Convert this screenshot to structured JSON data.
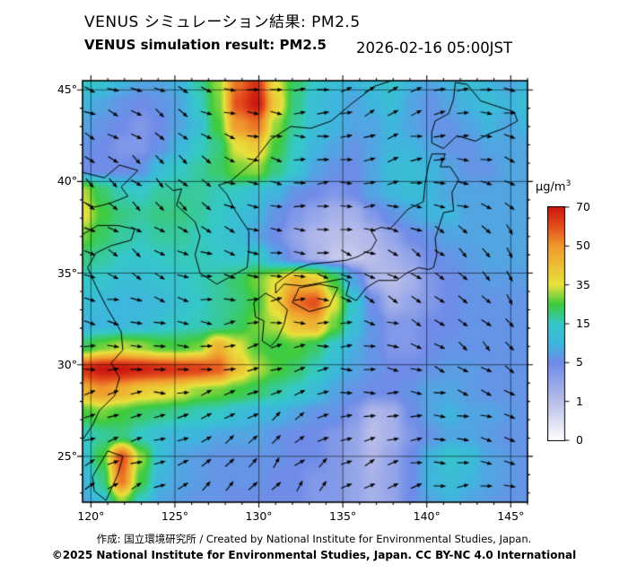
{
  "header": {
    "title_jp": "VENUS シミュレーション結果: PM2.5",
    "title_en": "VENUS simulation result: PM2.5",
    "timestamp": "2026-02-16 05:00JST"
  },
  "footer": {
    "credit_line1": "作成: 国立環境研究所 / Created by National Institute for Environmental Studies, Japan.",
    "credit_line2": "©2025 National Institute for Environmental Studies, Japan. CC BY-NC 4.0 International"
  },
  "colorbar": {
    "unit_text": "µg/m",
    "unit_sup": "3",
    "ticks": [
      70,
      50,
      35,
      15,
      5,
      1,
      0
    ]
  },
  "axes": {
    "lat_ticks": [
      {
        "value": 45,
        "label": "45°"
      },
      {
        "value": 40,
        "label": "40°"
      },
      {
        "value": 35,
        "label": "35°"
      },
      {
        "value": 30,
        "label": "30°"
      },
      {
        "value": 25,
        "label": "25°"
      }
    ],
    "lon_ticks": [
      {
        "value": 120,
        "label": "120°"
      },
      {
        "value": 125,
        "label": "125°"
      },
      {
        "value": 130,
        "label": "130°"
      },
      {
        "value": 135,
        "label": "135°"
      },
      {
        "value": 140,
        "label": "140°"
      },
      {
        "value": 145,
        "label": "145°"
      }
    ]
  },
  "chart_data": {
    "type": "heatmap",
    "title": "VENUS simulation result: PM2.5",
    "timestamp": "2026-02-16 05:00JST",
    "units": "µg/m3",
    "lon_range": [
      119.5,
      146.0
    ],
    "lat_range": [
      22.5,
      45.5
    ],
    "levels": [
      0,
      1,
      5,
      15,
      35,
      50,
      70
    ],
    "color_stops": [
      [
        0,
        "#ffffff"
      ],
      [
        1,
        "#b9bee9"
      ],
      [
        5,
        "#6f8ce8"
      ],
      [
        10,
        "#3fb6dd"
      ],
      [
        15,
        "#35c8c8"
      ],
      [
        25,
        "#3ecb3e"
      ],
      [
        35,
        "#e8e23c"
      ],
      [
        50,
        "#f09a2e"
      ],
      [
        60,
        "#e44e1e"
      ],
      [
        70,
        "#cc1810"
      ]
    ],
    "graticule_lon": [
      120,
      125,
      130,
      135,
      140,
      145
    ],
    "graticule_lat": [
      25,
      30,
      35,
      40,
      45
    ],
    "grid": {
      "cols": 24,
      "rows": 20,
      "values": [
        [
          15,
          14,
          10,
          8,
          8,
          10,
          18,
          30,
          55,
          65,
          35,
          22,
          15,
          12,
          10,
          12,
          14,
          10,
          8,
          10,
          12,
          10,
          8,
          10
        ],
        [
          10,
          8,
          6,
          5,
          6,
          8,
          15,
          28,
          60,
          70,
          40,
          20,
          12,
          10,
          8,
          10,
          12,
          8,
          6,
          8,
          10,
          12,
          10,
          12
        ],
        [
          8,
          6,
          5,
          4,
          5,
          8,
          12,
          25,
          50,
          55,
          30,
          18,
          12,
          10,
          8,
          8,
          10,
          8,
          6,
          6,
          8,
          10,
          8,
          10
        ],
        [
          6,
          5,
          4,
          4,
          6,
          10,
          15,
          20,
          35,
          40,
          25,
          15,
          10,
          8,
          6,
          8,
          10,
          10,
          8,
          6,
          6,
          8,
          8,
          8
        ],
        [
          5,
          5,
          5,
          6,
          12,
          15,
          18,
          22,
          28,
          30,
          20,
          14,
          8,
          6,
          5,
          8,
          12,
          12,
          10,
          8,
          6,
          6,
          8,
          8
        ],
        [
          32,
          22,
          16,
          15,
          18,
          18,
          18,
          16,
          15,
          12,
          10,
          6,
          5,
          4,
          5,
          8,
          10,
          12,
          10,
          8,
          8,
          8,
          8,
          8
        ],
        [
          36,
          25,
          20,
          18,
          20,
          20,
          18,
          15,
          12,
          10,
          6,
          4,
          3,
          2,
          2,
          4,
          6,
          8,
          10,
          10,
          8,
          8,
          8,
          8
        ],
        [
          28,
          22,
          18,
          16,
          18,
          18,
          16,
          14,
          12,
          8,
          5,
          3,
          1.5,
          1,
          1,
          1.5,
          3,
          5,
          6,
          8,
          8,
          8,
          8,
          8
        ],
        [
          20,
          18,
          15,
          14,
          15,
          16,
          16,
          15,
          14,
          15,
          8,
          4,
          2,
          0.8,
          0.8,
          1,
          2,
          3,
          5,
          6,
          7,
          8,
          8,
          8
        ],
        [
          15,
          14,
          12,
          12,
          13,
          14,
          16,
          18,
          22,
          28,
          35,
          45,
          40,
          25,
          8,
          2,
          1,
          2,
          4,
          5,
          6,
          7,
          7,
          7
        ],
        [
          12,
          11,
          10,
          10,
          11,
          13,
          15,
          18,
          20,
          25,
          38,
          55,
          60,
          35,
          14,
          5,
          2,
          3,
          4,
          5,
          6,
          6,
          6,
          6
        ],
        [
          10,
          10,
          10,
          11,
          13,
          15,
          16,
          18,
          22,
          28,
          32,
          42,
          45,
          28,
          12,
          6,
          4,
          4,
          5,
          5,
          6,
          6,
          6,
          6
        ],
        [
          22,
          28,
          32,
          30,
          26,
          25,
          28,
          45,
          35,
          26,
          24,
          26,
          22,
          14,
          9,
          6,
          4,
          4,
          5,
          6,
          6,
          6,
          6,
          6
        ],
        [
          65,
          70,
          70,
          68,
          66,
          64,
          62,
          58,
          42,
          32,
          26,
          22,
          16,
          11,
          8,
          6,
          5,
          5,
          6,
          7,
          7,
          6,
          6,
          6
        ],
        [
          45,
          50,
          45,
          40,
          38,
          35,
          30,
          28,
          25,
          22,
          18,
          15,
          12,
          8,
          6,
          5,
          5,
          6,
          8,
          8,
          7,
          6,
          6,
          6
        ],
        [
          25,
          28,
          25,
          22,
          20,
          18,
          16,
          15,
          12,
          10,
          10,
          8,
          6,
          6,
          4,
          1.5,
          2,
          5,
          8,
          10,
          8,
          8,
          7,
          6
        ],
        [
          15,
          18,
          20,
          15,
          12,
          10,
          10,
          8,
          8,
          8,
          6,
          5,
          5,
          4,
          3,
          1,
          2,
          4,
          6,
          8,
          8,
          7,
          6,
          6
        ],
        [
          12,
          25,
          60,
          30,
          12,
          8,
          7,
          6,
          6,
          6,
          6,
          5,
          5,
          4,
          3,
          1.5,
          3,
          5,
          10,
          14,
          12,
          8,
          7,
          6
        ],
        [
          10,
          20,
          55,
          25,
          10,
          8,
          7,
          6,
          6,
          6,
          5,
          5,
          4,
          4,
          3,
          2,
          3,
          5,
          10,
          12,
          10,
          8,
          7,
          6
        ],
        [
          8,
          12,
          30,
          15,
          8,
          7,
          6,
          6,
          5,
          5,
          5,
          5,
          4,
          4,
          3,
          2,
          3,
          5,
          8,
          10,
          8,
          7,
          6,
          6
        ]
      ]
    },
    "wind": {
      "cols": 13,
      "rows": 12,
      "angles_deg": [
        [
          -20,
          -25,
          -30,
          -20,
          -10,
          0,
          10,
          20,
          30,
          20,
          10,
          0,
          -10
        ],
        [
          -25,
          -30,
          -35,
          -25,
          -15,
          -5,
          5,
          15,
          25,
          15,
          5,
          -5,
          -15
        ],
        [
          -30,
          -35,
          -40,
          -30,
          -20,
          -10,
          0,
          10,
          20,
          10,
          0,
          -10,
          -20
        ],
        [
          -35,
          -40,
          -45,
          -35,
          -25,
          -15,
          -5,
          5,
          15,
          5,
          -5,
          -15,
          -25
        ],
        [
          -30,
          -35,
          -40,
          -30,
          -20,
          -10,
          0,
          -10,
          -20,
          -30,
          -40,
          -50,
          -60
        ],
        [
          -20,
          -25,
          -30,
          -20,
          -10,
          0,
          -10,
          -20,
          -30,
          -40,
          -50,
          -60,
          -70
        ],
        [
          -10,
          -15,
          -20,
          -10,
          0,
          10,
          0,
          -10,
          -20,
          -30,
          -40,
          -50,
          -60
        ],
        [
          0,
          -5,
          -10,
          0,
          10,
          20,
          10,
          0,
          -10,
          -20,
          -30,
          -40,
          -50
        ],
        [
          10,
          5,
          0,
          10,
          20,
          30,
          20,
          10,
          0,
          -10,
          -20,
          -30,
          -40
        ],
        [
          20,
          15,
          10,
          20,
          30,
          40,
          30,
          20,
          10,
          0,
          -10,
          -20,
          -30
        ],
        [
          30,
          25,
          20,
          30,
          40,
          50,
          40,
          30,
          20,
          10,
          0,
          -10,
          -20
        ],
        [
          40,
          35,
          30,
          40,
          50,
          60,
          50,
          40,
          30,
          20,
          10,
          0,
          -10
        ]
      ]
    },
    "coastlines": [
      [
        [
          119.5,
          40.5
        ],
        [
          120.8,
          40.2
        ],
        [
          121.7,
          40.9
        ],
        [
          122.8,
          40.6
        ],
        [
          121.8,
          39.7
        ],
        [
          122.2,
          39.2
        ],
        [
          121.1,
          38.8
        ],
        [
          120.2,
          38.6
        ],
        [
          119.5,
          38.9
        ]
      ],
      [
        [
          119.5,
          37.1
        ],
        [
          120.4,
          37.6
        ],
        [
          121.6,
          37.6
        ],
        [
          122.6,
          37.4
        ],
        [
          122.4,
          36.8
        ],
        [
          121.2,
          36.5
        ],
        [
          120.3,
          36.1
        ],
        [
          119.8,
          35.3
        ],
        [
          120.3,
          34.3
        ],
        [
          120.9,
          33.2
        ],
        [
          121.8,
          31.8
        ],
        [
          121.9,
          30.8
        ],
        [
          121.2,
          30.1
        ],
        [
          121.7,
          29.3
        ],
        [
          121.4,
          28.3
        ],
        [
          120.5,
          27.5
        ],
        [
          120.1,
          26.7
        ],
        [
          119.5,
          25.9
        ]
      ],
      [
        [
          124.4,
          39.9
        ],
        [
          124.9,
          39.5
        ],
        [
          125.4,
          39.6
        ],
        [
          125.1,
          38.7
        ],
        [
          126.2,
          37.8
        ],
        [
          126.5,
          37.0
        ],
        [
          126.2,
          36.0
        ],
        [
          126.5,
          35.0
        ],
        [
          127.5,
          34.4
        ],
        [
          128.5,
          34.9
        ],
        [
          129.3,
          35.3
        ],
        [
          129.4,
          36.2
        ],
        [
          129.4,
          37.3
        ],
        [
          128.6,
          38.4
        ],
        [
          128.1,
          39.3
        ],
        [
          127.6,
          39.8
        ],
        [
          128.3,
          40.0
        ],
        [
          129.7,
          41.1
        ],
        [
          130.7,
          42.3
        ]
      ],
      [
        [
          130.7,
          42.3
        ],
        [
          131.9,
          43.0
        ],
        [
          133.1,
          42.9
        ],
        [
          134.3,
          43.3
        ],
        [
          135.6,
          44.3
        ],
        [
          136.9,
          45.2
        ],
        [
          137.9,
          45.5
        ]
      ],
      [
        [
          129.7,
          33.4
        ],
        [
          130.4,
          33.9
        ],
        [
          131.0,
          33.6
        ],
        [
          131.7,
          33.0
        ],
        [
          131.5,
          32.2
        ],
        [
          131.1,
          31.4
        ],
        [
          130.7,
          31.0
        ],
        [
          130.2,
          31.3
        ],
        [
          130.3,
          32.4
        ],
        [
          129.8,
          32.6
        ],
        [
          129.7,
          33.4
        ]
      ],
      [
        [
          132.0,
          33.4
        ],
        [
          133.0,
          32.9
        ],
        [
          134.2,
          33.2
        ],
        [
          134.7,
          34.2
        ],
        [
          133.6,
          34.4
        ],
        [
          132.4,
          34.2
        ],
        [
          132.0,
          33.4
        ]
      ],
      [
        [
          131.0,
          33.9
        ],
        [
          131.5,
          34.4
        ],
        [
          132.6,
          34.3
        ],
        [
          133.9,
          34.5
        ],
        [
          135.0,
          34.7
        ],
        [
          135.4,
          34.5
        ],
        [
          135.2,
          33.8
        ],
        [
          135.8,
          33.5
        ],
        [
          136.4,
          34.2
        ],
        [
          137.1,
          34.6
        ],
        [
          138.2,
          34.6
        ],
        [
          138.8,
          35.0
        ],
        [
          139.5,
          35.3
        ],
        [
          140.1,
          35.2
        ],
        [
          140.4,
          35.3
        ],
        [
          140.6,
          36.0
        ],
        [
          140.5,
          36.9
        ],
        [
          141.0,
          38.3
        ],
        [
          141.6,
          38.4
        ],
        [
          141.5,
          39.4
        ],
        [
          141.9,
          40.1
        ],
        [
          141.4,
          40.8
        ],
        [
          140.8,
          40.8
        ],
        [
          141.1,
          41.5
        ],
        [
          140.3,
          41.5
        ],
        [
          140.1,
          40.9
        ],
        [
          139.9,
          39.9
        ],
        [
          139.8,
          38.9
        ],
        [
          138.9,
          38.5
        ],
        [
          137.8,
          37.4
        ],
        [
          137.3,
          37.5
        ],
        [
          136.7,
          37.3
        ],
        [
          137.0,
          36.8
        ],
        [
          136.7,
          36.3
        ],
        [
          135.9,
          35.9
        ],
        [
          135.2,
          35.7
        ],
        [
          134.3,
          35.6
        ],
        [
          133.1,
          35.5
        ],
        [
          132.4,
          35.3
        ],
        [
          131.4,
          34.7
        ],
        [
          131.0,
          34.4
        ],
        [
          131.0,
          33.9
        ]
      ],
      [
        [
          140.3,
          42.1
        ],
        [
          141.0,
          41.8
        ],
        [
          141.8,
          42.5
        ],
        [
          142.9,
          42.2
        ],
        [
          143.7,
          42.6
        ],
        [
          144.6,
          42.9
        ],
        [
          145.4,
          43.3
        ],
        [
          145.2,
          43.8
        ],
        [
          144.2,
          44.1
        ],
        [
          143.2,
          44.4
        ],
        [
          142.4,
          45.3
        ],
        [
          141.7,
          45.4
        ],
        [
          141.6,
          44.5
        ],
        [
          141.3,
          43.7
        ],
        [
          140.5,
          43.3
        ],
        [
          140.3,
          42.7
        ],
        [
          140.3,
          42.1
        ]
      ],
      [
        [
          121.0,
          25.3
        ],
        [
          121.9,
          25.0
        ],
        [
          121.6,
          24.0
        ],
        [
          120.9,
          22.6
        ],
        [
          120.2,
          23.1
        ],
        [
          120.1,
          23.9
        ],
        [
          121.0,
          25.3
        ]
      ]
    ]
  }
}
